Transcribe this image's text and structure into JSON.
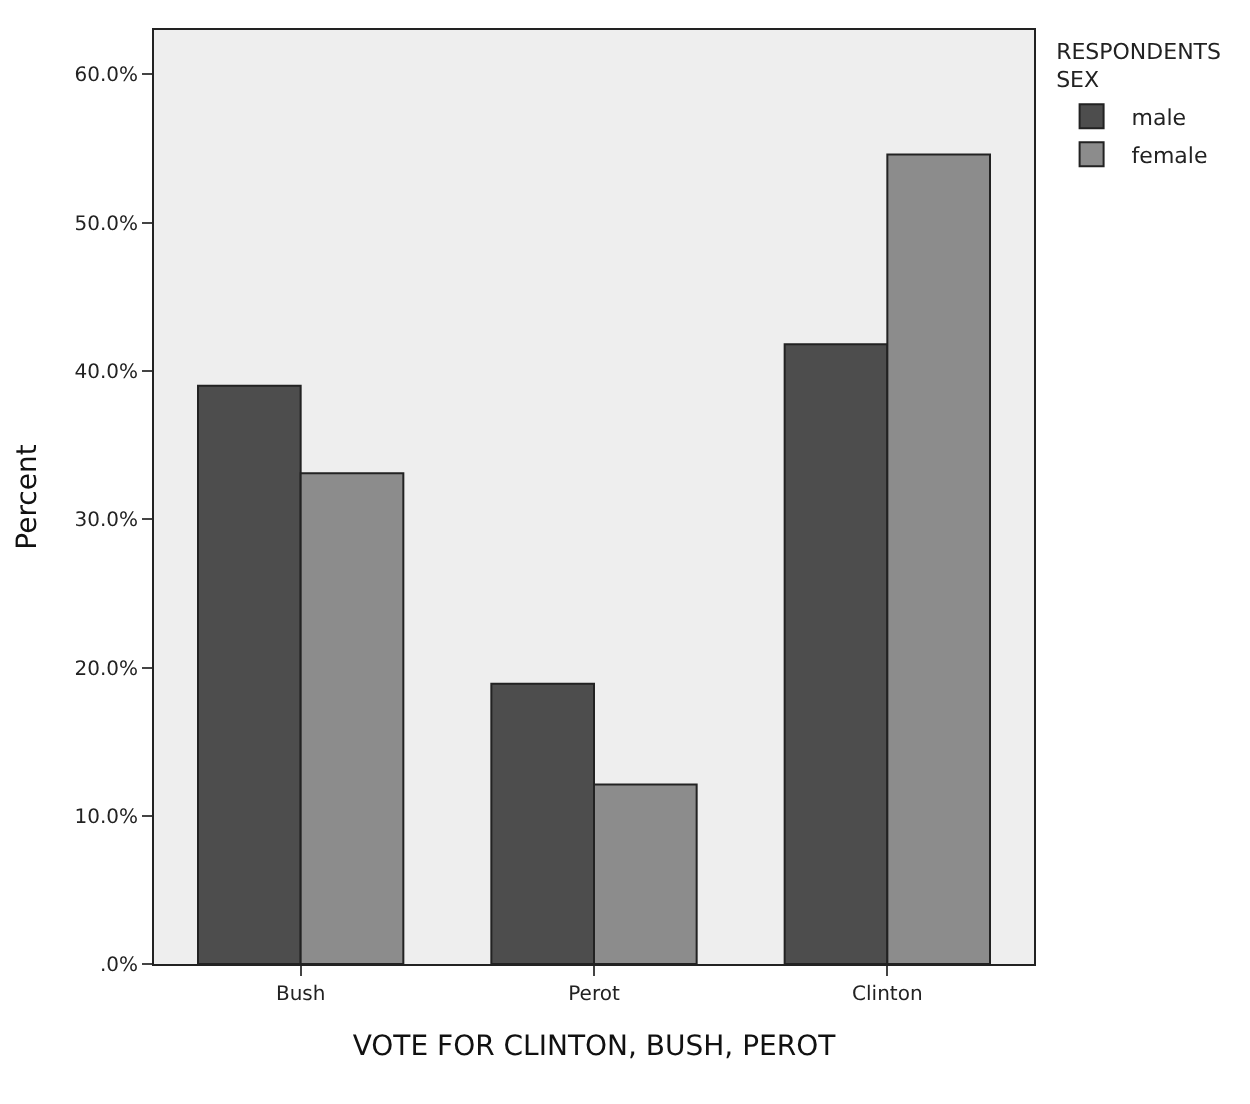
{
  "chart_data": {
    "type": "bar",
    "xlabel": "VOTE FOR CLINTON, BUSH, PEROT",
    "ylabel": "Percent",
    "legend_title": "RESPONDENTS\nSEX",
    "categories": [
      "Bush",
      "Perot",
      "Clinton"
    ],
    "series": [
      {
        "name": "male",
        "color": "#4d4d4d",
        "values": [
          39.0,
          18.9,
          41.8
        ]
      },
      {
        "name": "female",
        "color": "#8c8c8c",
        "values": [
          33.1,
          12.1,
          54.6
        ]
      }
    ],
    "ylim": [
      0,
      63
    ],
    "yticks": [
      {
        "value": 0,
        "label": ".0%"
      },
      {
        "value": 10,
        "label": "10.0%"
      },
      {
        "value": 20,
        "label": "20.0%"
      },
      {
        "value": 30,
        "label": "30.0%"
      },
      {
        "value": 40,
        "label": "40.0%"
      },
      {
        "value": 50,
        "label": "50.0%"
      },
      {
        "value": 60,
        "label": "60.0%"
      }
    ],
    "grid": false,
    "legend": "top right"
  }
}
